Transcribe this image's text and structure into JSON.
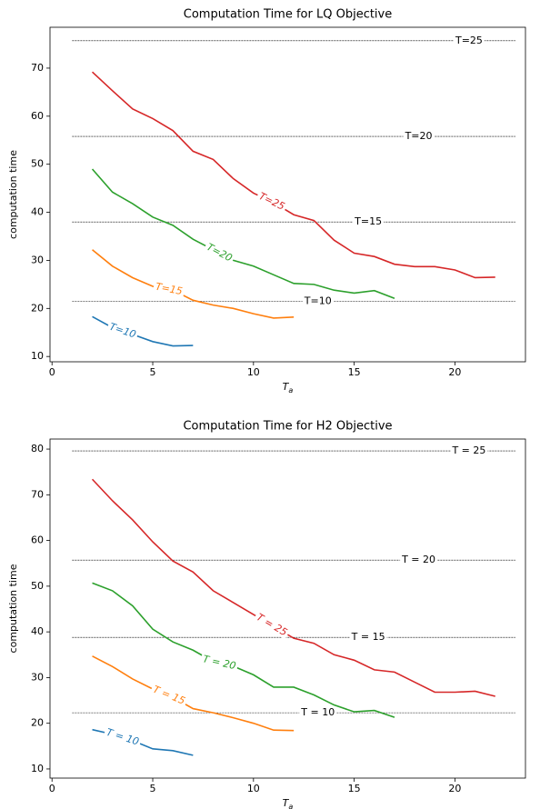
{
  "chart_data": [
    {
      "type": "line",
      "title": "Computation Time for LQ Objective",
      "ylabel": "computation time",
      "xlabel": {
        "base": "T",
        "subscript": "a"
      },
      "xlim": [
        -0.1,
        23.5
      ],
      "xticks": [
        0,
        5,
        10,
        15,
        20
      ],
      "ylim": [
        8.9,
        78.5
      ],
      "yticks": [
        10,
        20,
        30,
        40,
        50,
        60,
        70
      ],
      "hline_xlim": [
        1,
        23
      ],
      "hlines": [
        {
          "value": 21.5,
          "label": "T=10"
        },
        {
          "value": 38.0,
          "label": "T=15"
        },
        {
          "value": 55.8,
          "label": "T=20"
        },
        {
          "value": 75.7,
          "label": "T=25"
        }
      ],
      "series": [
        {
          "name": "T=10",
          "color": "#1f77b4",
          "x": [
            2,
            3,
            4,
            5,
            6,
            7
          ],
          "values": [
            18.3,
            16.0,
            14.6,
            13.1,
            12.2,
            12.3
          ]
        },
        {
          "name": "T=15",
          "color": "#ff7f0e",
          "x": [
            2,
            3,
            4,
            5,
            6,
            7,
            8,
            9,
            10,
            11,
            12
          ],
          "values": [
            32.2,
            28.8,
            26.4,
            24.6,
            23.8,
            21.7,
            20.7,
            20.0,
            18.9,
            18.0,
            18.2
          ]
        },
        {
          "name": "T=20",
          "color": "#2ca02c",
          "x": [
            2,
            3,
            4,
            5,
            6,
            7,
            8,
            9,
            10,
            11,
            12,
            13,
            14,
            15,
            16,
            17
          ],
          "values": [
            49.0,
            44.2,
            41.8,
            39.0,
            37.3,
            34.4,
            32.2,
            30.0,
            28.8,
            27.0,
            25.2,
            25.0,
            23.8,
            23.2,
            23.7,
            22.1
          ]
        },
        {
          "name": "T=25",
          "color": "#d62728",
          "x": [
            2,
            3,
            4,
            5,
            6,
            7,
            8,
            9,
            10,
            11,
            12,
            13,
            14,
            15,
            16,
            17,
            18,
            19,
            20,
            21,
            22
          ],
          "values": [
            69.2,
            65.3,
            61.5,
            59.5,
            57.0,
            52.7,
            51.0,
            47.0,
            44.0,
            42.0,
            39.5,
            38.3,
            34.2,
            31.5,
            30.8,
            29.2,
            28.7,
            28.7,
            28.0,
            26.4,
            26.5
          ]
        }
      ]
    },
    {
      "type": "line",
      "title": "Computation Time for H2 Objective",
      "ylabel": "computation time",
      "xlabel": {
        "base": "T",
        "subscript": "a"
      },
      "xlim": [
        -0.1,
        23.5
      ],
      "xticks": [
        0,
        5,
        10,
        15,
        20
      ],
      "ylim": [
        8.0,
        82.2
      ],
      "yticks": [
        10,
        20,
        30,
        40,
        50,
        60,
        70,
        80
      ],
      "hline_xlim": [
        1,
        23
      ],
      "hlines": [
        {
          "value": 22.3,
          "label": "T = 10"
        },
        {
          "value": 38.8,
          "label": "T = 15"
        },
        {
          "value": 55.7,
          "label": "T = 20"
        },
        {
          "value": 79.6,
          "label": "T = 25"
        }
      ],
      "series": [
        {
          "name": "T = 10",
          "color": "#1f77b4",
          "x": [
            2,
            3,
            4,
            5,
            6,
            7
          ],
          "values": [
            18.6,
            17.6,
            16.2,
            14.4,
            14.0,
            13.0
          ]
        },
        {
          "name": "T = 15",
          "color": "#ff7f0e",
          "x": [
            2,
            3,
            4,
            5,
            6,
            7,
            8,
            9,
            10,
            11,
            12
          ],
          "values": [
            34.7,
            32.4,
            29.7,
            27.5,
            25.7,
            23.2,
            22.3,
            21.2,
            20.0,
            18.5,
            18.4
          ]
        },
        {
          "name": "T = 20",
          "color": "#2ca02c",
          "x": [
            2,
            3,
            4,
            5,
            6,
            7,
            8,
            9,
            10,
            11,
            12,
            13,
            14,
            15,
            16,
            17
          ],
          "values": [
            50.7,
            49.0,
            45.7,
            40.6,
            37.8,
            36.0,
            33.5,
            32.5,
            30.6,
            27.9,
            27.9,
            26.2,
            24.0,
            22.5,
            22.8,
            21.3
          ]
        },
        {
          "name": "T = 25",
          "color": "#d62728",
          "x": [
            2,
            3,
            4,
            5,
            6,
            7,
            8,
            9,
            10,
            11,
            12,
            13,
            14,
            15,
            16,
            17,
            18,
            19,
            20,
            21,
            22
          ],
          "values": [
            73.4,
            68.7,
            64.5,
            59.7,
            55.5,
            53.1,
            49.0,
            46.4,
            43.8,
            41.2,
            38.6,
            37.5,
            35.0,
            33.8,
            31.7,
            31.2,
            29.0,
            26.8,
            26.8,
            27.0,
            25.9
          ]
        }
      ]
    }
  ]
}
